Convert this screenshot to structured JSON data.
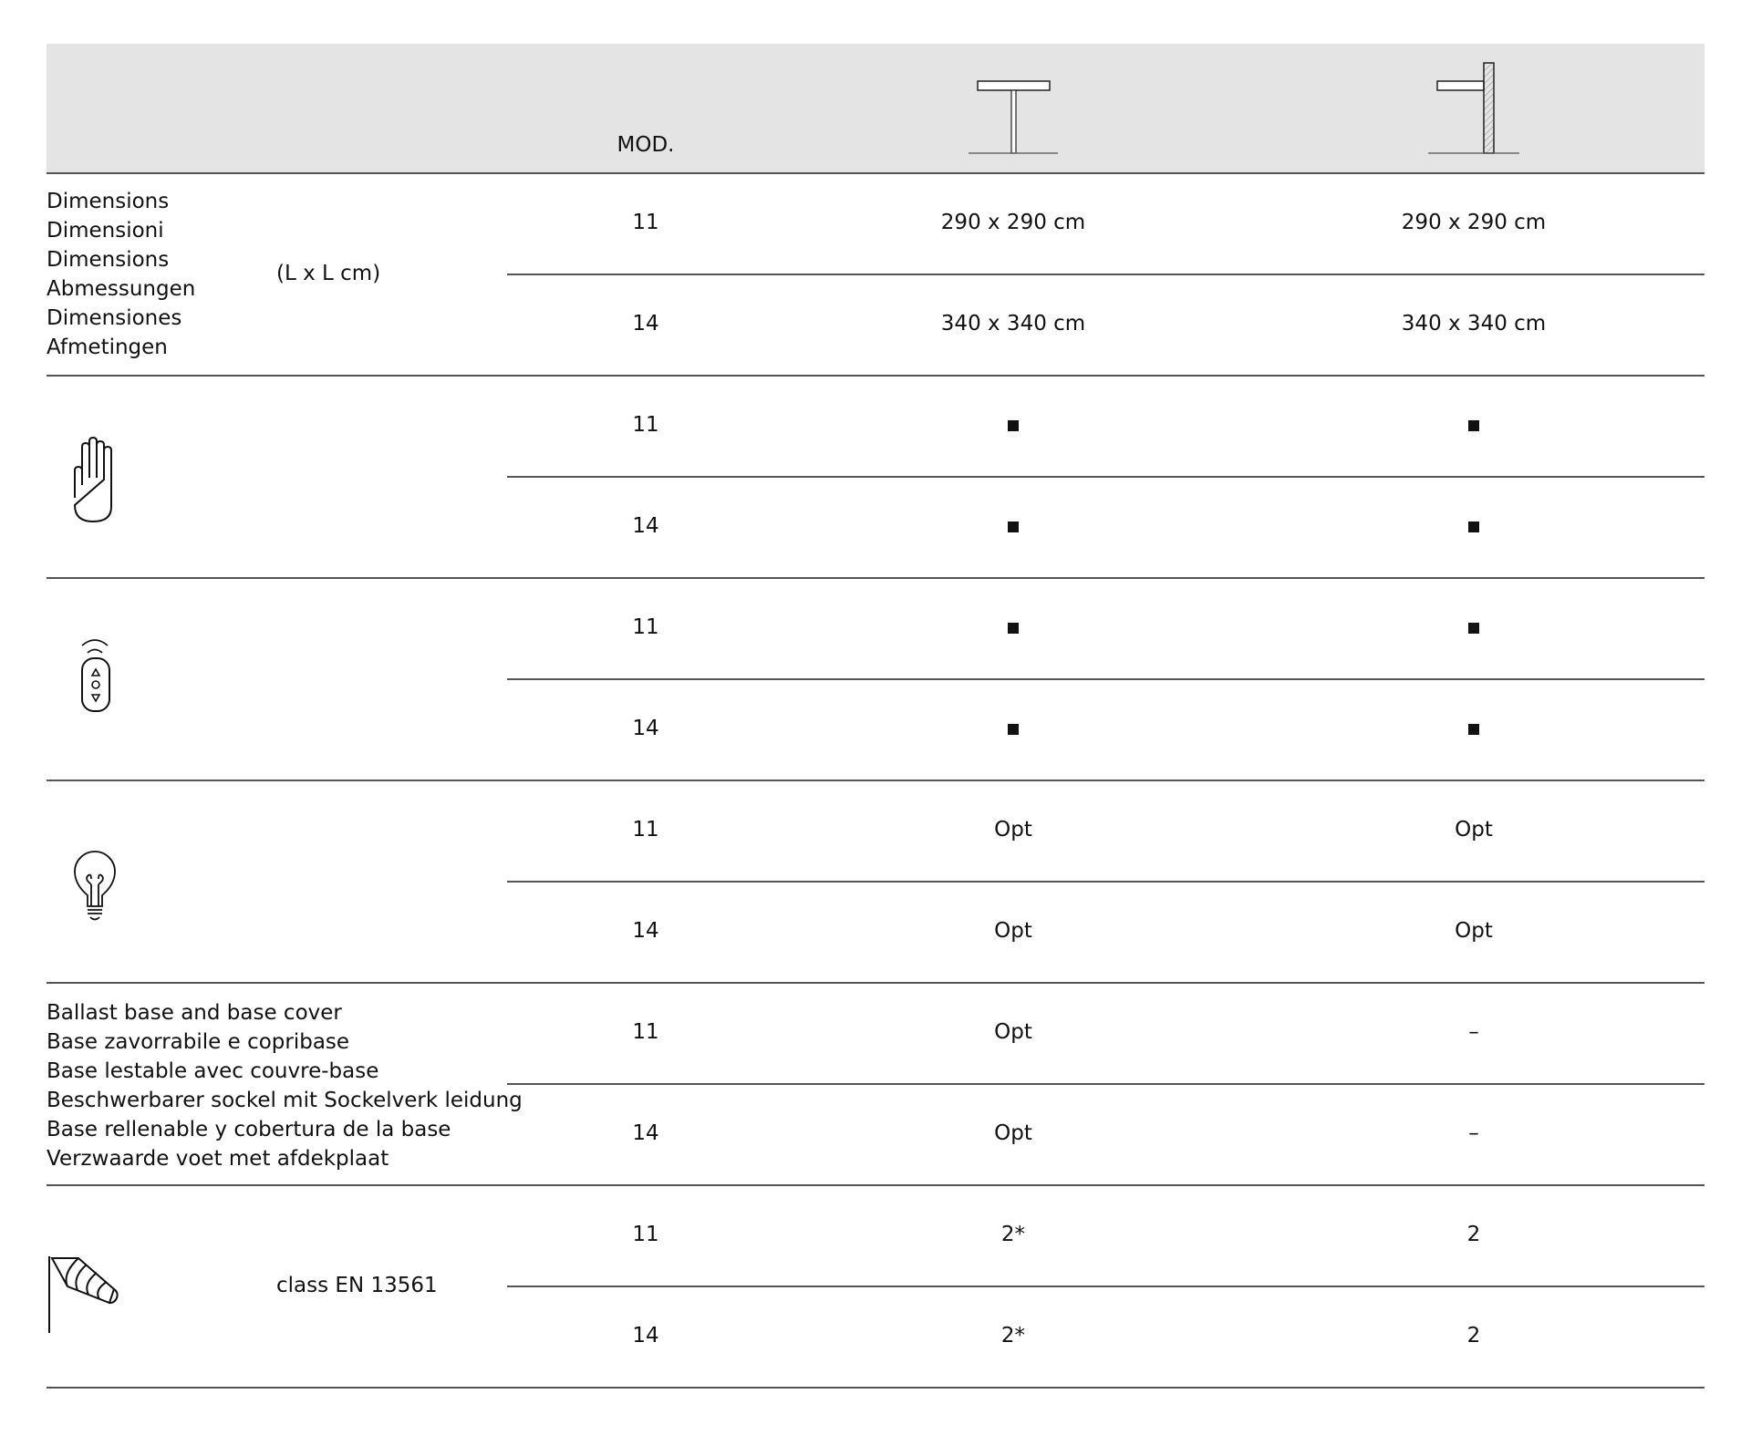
{
  "header": {
    "mod_label": "MOD.",
    "columns": [
      {
        "icon": "center-pole-umbrella-icon"
      },
      {
        "icon": "wall-mounted-umbrella-icon"
      }
    ]
  },
  "sections": [
    {
      "label_lines": [
        "Dimensions",
        "Dimensioni",
        "Dimensions",
        "Abmessungen",
        "Dimensiones",
        "Afmetingen"
      ],
      "unit": "(L x L cm)",
      "rows": [
        {
          "mod": "11",
          "c1": "290 x 290 cm",
          "c2": "290 x 290 cm"
        },
        {
          "mod": "14",
          "c1": "340 x 340 cm",
          "c2": "340 x 340 cm"
        }
      ]
    },
    {
      "icon": "hand-icon",
      "rows": [
        {
          "mod": "11",
          "c1": "■",
          "c2": "■"
        },
        {
          "mod": "14",
          "c1": "■",
          "c2": "■"
        }
      ]
    },
    {
      "icon": "remote-control-icon",
      "rows": [
        {
          "mod": "11",
          "c1": "■",
          "c2": "■"
        },
        {
          "mod": "14",
          "c1": "■",
          "c2": "■"
        }
      ]
    },
    {
      "icon": "light-bulb-icon",
      "rows": [
        {
          "mod": "11",
          "c1": "Opt",
          "c2": "Opt"
        },
        {
          "mod": "14",
          "c1": "Opt",
          "c2": "Opt"
        }
      ]
    },
    {
      "label_lines": [
        "Ballast base and base cover",
        "Base zavorrabile e copribase",
        "Base lestable avec couvre-base",
        "Beschwerbarer sockel mit Sockelverk leidung",
        "Base rellenable y cobertura de la base",
        "Verzwaarde voet met afdekplaat"
      ],
      "rows": [
        {
          "mod": "11",
          "c1": "Opt",
          "c2": "–"
        },
        {
          "mod": "14",
          "c1": "Opt",
          "c2": "–"
        }
      ]
    },
    {
      "icon": "windsock-icon",
      "unit": "class EN 13561",
      "rows": [
        {
          "mod": "11",
          "c1": "2*",
          "c2": "2"
        },
        {
          "mod": "14",
          "c1": "2*",
          "c2": "2"
        }
      ]
    }
  ]
}
